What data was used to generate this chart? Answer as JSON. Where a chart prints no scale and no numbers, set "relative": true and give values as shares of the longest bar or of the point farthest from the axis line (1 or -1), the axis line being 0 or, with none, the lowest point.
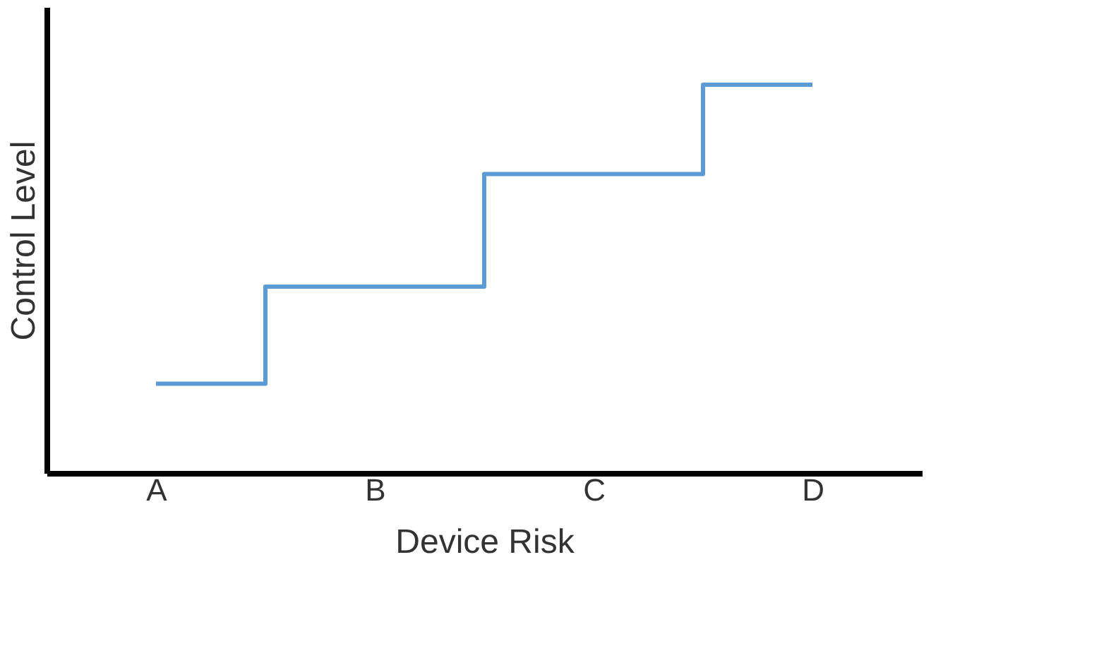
{
  "chart_data": {
    "type": "step",
    "xlabel": "Device Risk",
    "ylabel": "Control Level",
    "categories": [
      "A",
      "B",
      "C",
      "D"
    ],
    "series": [
      {
        "color": "#5b9bd5",
        "values": [
          0.23,
          0.48,
          0.77,
          1
        ]
      }
    ],
    "relative": true,
    "grid": false,
    "marker": "none",
    "line_style": "solid"
  }
}
